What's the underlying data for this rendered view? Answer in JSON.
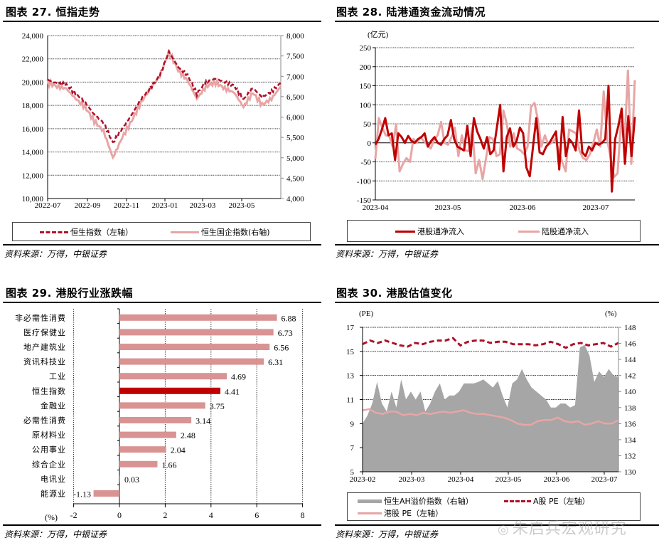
{
  "panels": {
    "fig27": {
      "title": "图表 27.  恒指走势",
      "source": "资料来源：万得，中银证券"
    },
    "fig28": {
      "title": "图表 28.  陆港通资金流动情况",
      "source": "资料来源：万得，中银证券"
    },
    "fig29": {
      "title": "图表 29.  港股行业涨跌幅",
      "source": "资料来源：万得，中银证券"
    },
    "fig30": {
      "title": "图表 30.  港股估值变化",
      "source": "资料来源：万得，中银证券"
    }
  },
  "watermark": "朱启兵宏观研究",
  "colors": {
    "dark_red": "#B0102A",
    "light_pink": "#E8A5A5",
    "bar_pink": "#D99393",
    "bar_red": "#C00000",
    "red_line": "#C00000",
    "gray_area": "#A6A6A6"
  },
  "chart_data": [
    {
      "id": "fig27",
      "type": "line",
      "title": "恒指走势",
      "x_ticks": [
        "2022-07",
        "2022-09",
        "2022-11",
        "2023-01",
        "2023-03",
        "2023-05"
      ],
      "y_left": {
        "ticks": [
          "10,000",
          "12,000",
          "14,000",
          "16,000",
          "18,000",
          "20,000",
          "22,000",
          "24,000"
        ],
        "range": [
          10000,
          24000
        ]
      },
      "y_right": {
        "ticks": [
          "4,000",
          "4,500",
          "5,000",
          "5,500",
          "6,000",
          "6,500",
          "7,000",
          "7,500",
          "8,000"
        ],
        "range": [
          4000,
          8000
        ]
      },
      "grid": true,
      "legend_position": "bottom",
      "series": [
        {
          "name": "恒生指数（左轴）",
          "axis": "left",
          "style": "dashed",
          "color": "#B0102A",
          "x": [
            "2022-07",
            "2022-07-15",
            "2022-08",
            "2022-08-15",
            "2022-09",
            "2022-09-15",
            "2022-10",
            "2022-10-15",
            "2022-10-25",
            "2022-11",
            "2022-11-15",
            "2022-12",
            "2022-12-15",
            "2023-01",
            "2023-01-15",
            "2023-02",
            "2023-02-15",
            "2023-03",
            "2023-03-15",
            "2023-04",
            "2023-04-15",
            "2023-05",
            "2023-05-15",
            "2023-06",
            "2023-06-15",
            "2023-07"
          ],
          "values": [
            20200,
            19900,
            19800,
            19000,
            18300,
            17200,
            16500,
            14800,
            16000,
            17200,
            18500,
            19500,
            20500,
            22600,
            21300,
            20600,
            19000,
            20000,
            20300,
            20000,
            19700,
            18500,
            19500,
            18700,
            19200,
            19900
          ]
        },
        {
          "name": "恒生国企指数(右轴)",
          "axis": "right",
          "style": "solid",
          "color": "#E8A5A5",
          "x": [
            "2022-07",
            "2022-07-15",
            "2022-08",
            "2022-08-15",
            "2022-09",
            "2022-09-15",
            "2022-10",
            "2022-10-15",
            "2022-10-25",
            "2022-11",
            "2022-11-15",
            "2022-12",
            "2022-12-15",
            "2023-01",
            "2023-01-15",
            "2023-02",
            "2023-02-15",
            "2023-03",
            "2023-03-15",
            "2023-04",
            "2023-04-15",
            "2023-05",
            "2023-05-15",
            "2023-06",
            "2023-06-15",
            "2023-07"
          ],
          "values": [
            6850,
            6750,
            6700,
            6450,
            6250,
            5900,
            5650,
            5000,
            5500,
            5900,
            6350,
            6700,
            7000,
            7600,
            7150,
            6900,
            6450,
            6750,
            6850,
            6700,
            6600,
            6250,
            6600,
            6300,
            6450,
            6750
          ]
        }
      ]
    },
    {
      "id": "fig28",
      "type": "line",
      "title": "陆港通资金流动情况",
      "ylabel": "(亿元)",
      "x_ticks": [
        "2023-04",
        "2023-05",
        "2023-06",
        "2023-07"
      ],
      "y_ticks": [
        "-150",
        "-100",
        "-50",
        "0",
        "50",
        "100",
        "150",
        "200",
        "250"
      ],
      "ylim": [
        -150,
        250
      ],
      "grid": true,
      "legend_position": "bottom",
      "series": [
        {
          "name": "港股通净流入",
          "color": "#C00000",
          "values": [
            -5,
            10,
            35,
            65,
            20,
            25,
            -45,
            25,
            15,
            0,
            18,
            5,
            0,
            10,
            15,
            25,
            -10,
            5,
            15,
            0,
            -5,
            10,
            20,
            60,
            10,
            -10,
            -15,
            -20,
            45,
            -35,
            65,
            30,
            10,
            -15,
            15,
            -30,
            -20,
            40,
            100,
            -75,
            15,
            38,
            -10,
            5,
            40,
            25,
            -65,
            -88,
            -10,
            65,
            -25,
            -30,
            -10,
            0,
            15,
            30,
            -70,
            68,
            -35,
            10,
            0,
            -20,
            85,
            -25,
            -35,
            -10,
            -20,
            0,
            -5,
            0,
            10,
            150,
            -128,
            10,
            45,
            90,
            -55,
            70,
            -35,
            68
          ]
        },
        {
          "name": "陆股通净流入",
          "color": "#E8A5A5",
          "values": [
            -42,
            65,
            40,
            20,
            18,
            -10,
            48,
            -75,
            -55,
            -40,
            -50,
            10,
            0,
            15,
            5,
            -5,
            -15,
            8,
            20,
            55,
            0,
            -5,
            15,
            40,
            -35,
            20,
            -20,
            -22,
            40,
            -80,
            -45,
            -95,
            -40,
            15,
            10,
            -35,
            -30,
            85,
            50,
            -10,
            25,
            -15,
            -20,
            -30,
            -10,
            95,
            105,
            60,
            -10,
            20,
            -5,
            0,
            10,
            -20,
            -50,
            -75,
            35,
            30,
            25,
            -20,
            -40,
            -45,
            -30,
            0,
            35,
            -10,
            135,
            10,
            -40,
            -90,
            -80,
            55,
            -5,
            190,
            -55,
            165
          ]
        }
      ]
    },
    {
      "id": "fig29",
      "type": "bar",
      "orientation": "horizontal",
      "title": "港股行业涨跌幅",
      "xlabel": "(%)",
      "x_ticks": [
        "-2",
        "0",
        "2",
        "4",
        "6",
        "8"
      ],
      "xlim": [
        -2,
        8
      ],
      "grid": true,
      "categories": [
        "非必需性消费",
        "医疗保健业",
        "地产建筑业",
        "资讯科技业",
        "工业",
        "恒生指数",
        "金融业",
        "必需性消费",
        "原材料业",
        "公用事业",
        "综合企业",
        "电讯业",
        "能源业"
      ],
      "values": [
        6.88,
        6.73,
        6.56,
        6.31,
        4.69,
        4.41,
        3.75,
        3.14,
        2.48,
        2.04,
        1.66,
        0.03,
        -1.13
      ],
      "labels": [
        "6.88",
        "6.73",
        "6.56",
        "6.31",
        "4.69",
        "4.41",
        "3.75",
        "3.14",
        "2.48",
        "2.04",
        "1.66",
        "0.03",
        "-1.13"
      ],
      "highlight": "恒生指数"
    },
    {
      "id": "fig30",
      "type": "area",
      "title": "港股估值变化",
      "x_ticks": [
        "2023-02",
        "2023-03",
        "2023-04",
        "2023-05",
        "2023-06",
        "2023-07"
      ],
      "y_left": {
        "label": "(PE)",
        "ticks": [
          "5",
          "7",
          "9",
          "11",
          "13",
          "15",
          "17"
        ],
        "range": [
          5,
          17
        ]
      },
      "y_right": {
        "label": "(%)",
        "ticks": [
          "130",
          "132",
          "134",
          "136",
          "138",
          "140",
          "142",
          "144",
          "146",
          "148"
        ],
        "range": [
          130,
          148
        ]
      },
      "grid": true,
      "legend_position": "bottom",
      "series": [
        {
          "name": "恒生AH溢价指数（右轴）",
          "axis": "right",
          "style": "area",
          "color": "#A6A6A6",
          "values": [
            136,
            137,
            138.5,
            141.2,
            138.5,
            137.5,
            140,
            138,
            141.5,
            139,
            140,
            139,
            140,
            137.5,
            138.5,
            140,
            141,
            139,
            139.5,
            139.5,
            140,
            141,
            141,
            141,
            141.2,
            141.5,
            141,
            140.5,
            141.3,
            139.5,
            138,
            141,
            141.5,
            142.8,
            141.5,
            140.5,
            140,
            139.5,
            139,
            138,
            138,
            138.5,
            138.5,
            138,
            138.3,
            145.5,
            145.8,
            144.5,
            141.2,
            142.5,
            141.8,
            142.8,
            142,
            141.8
          ]
        },
        {
          "name": "A股 PE（左轴）",
          "axis": "left",
          "style": "dashed",
          "color": "#B0102A",
          "values": [
            15.6,
            15.9,
            15.7,
            15.9,
            15.7,
            15.5,
            15.4,
            15.7,
            15.6,
            15.8,
            15.9,
            15.9,
            16.1,
            15.5,
            15.8,
            15.9,
            15.9,
            15.7,
            15.8,
            15.8,
            15.6,
            15.6,
            15.6,
            15.5,
            15.6,
            15.8,
            15.6,
            15.3,
            15.6,
            15.7,
            15.5,
            15.6,
            15.7,
            15.4,
            15.7
          ]
        },
        {
          "name": "港股 PE（左轴）",
          "axis": "left",
          "style": "solid",
          "color": "#E8A5A5",
          "values": [
            10.1,
            10.2,
            9.9,
            9.8,
            10.0,
            10.0,
            9.7,
            9.8,
            9.7,
            9.9,
            9.8,
            9.9,
            10.0,
            9.9,
            10.0,
            10.1,
            9.9,
            9.8,
            9.8,
            9.7,
            9.6,
            9.5,
            9.3,
            9.0,
            8.9,
            8.9,
            9.2,
            9.3,
            9.3,
            9.5,
            9.2,
            9.1,
            9.2,
            8.9,
            9.0,
            9.2,
            9.0,
            9.0,
            9.3
          ]
        }
      ]
    }
  ],
  "legends": {
    "fig27": [
      "恒生指数（左轴）",
      "恒生国企指数(右轴)"
    ],
    "fig28": [
      "港股通净流入",
      "陆股通净流入"
    ],
    "fig30": [
      "恒生AH溢价指数（右轴）",
      "A股 PE（左轴）",
      "港股 PE（左轴）"
    ]
  }
}
